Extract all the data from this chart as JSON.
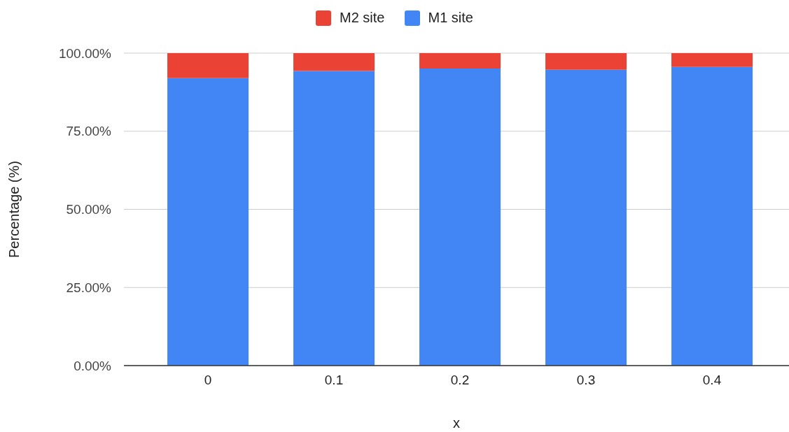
{
  "chart_data": {
    "type": "bar",
    "stacked": true,
    "xlabel": "x",
    "ylabel": "Percentage (%)",
    "categories": [
      "0",
      "0.1",
      "0.2",
      "0.3",
      "0.4"
    ],
    "series": [
      {
        "name": "M1 site",
        "color": "#4285f4",
        "values": [
          92.0,
          94.3,
          95.1,
          94.7,
          95.6
        ]
      },
      {
        "name": "M2 site",
        "color": "#ea4335",
        "values": [
          8.0,
          5.7,
          4.9,
          5.3,
          4.4
        ]
      }
    ],
    "ylim": [
      0,
      100
    ],
    "yticks": [
      {
        "value": 0,
        "label": "0.00%"
      },
      {
        "value": 25,
        "label": "25.00%"
      },
      {
        "value": 50,
        "label": "50.00%"
      },
      {
        "value": 75,
        "label": "75.00%"
      },
      {
        "value": 100,
        "label": "100.00%"
      }
    ],
    "grid": "y",
    "legend": "top"
  }
}
